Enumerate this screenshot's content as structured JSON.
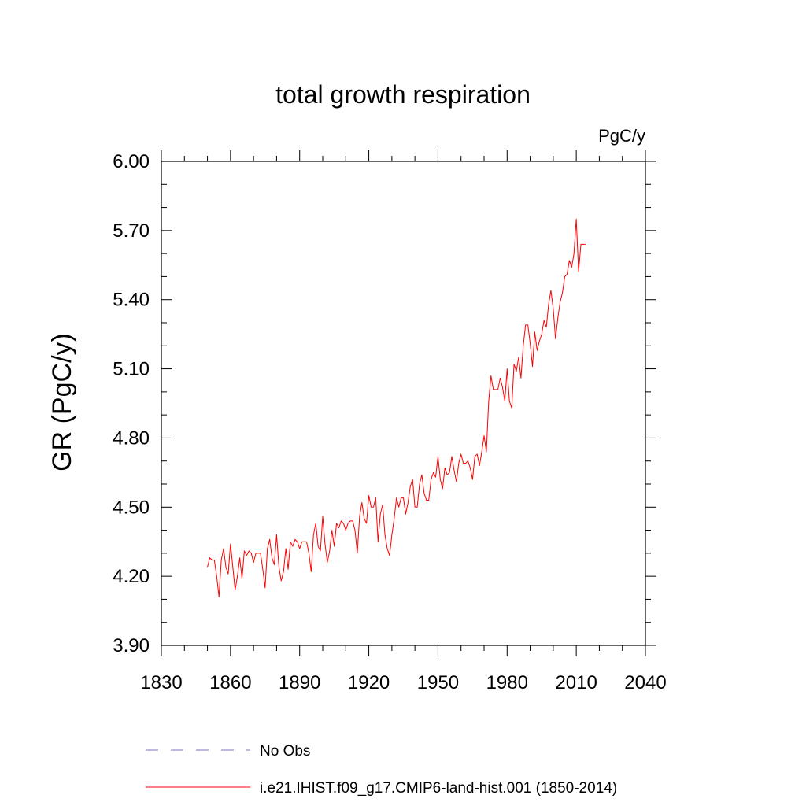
{
  "chart_data": {
    "type": "line",
    "title": "total growth respiration",
    "units": "PgC/y",
    "xlabel": "",
    "ylabel": "GR  (PgC/y)",
    "xlim": [
      1830,
      2040
    ],
    "ylim": [
      3.9,
      6.0
    ],
    "xticks": [
      1830,
      1860,
      1890,
      1920,
      1950,
      1980,
      2010,
      2040
    ],
    "yticks": [
      "3.90",
      "4.20",
      "4.50",
      "4.80",
      "5.10",
      "5.40",
      "5.70",
      "6.00"
    ],
    "grid": false,
    "legend_position": "bottom",
    "series": [
      {
        "name": "No Obs",
        "color": "#9a8fd0",
        "style": "dashed",
        "x": [],
        "values": []
      },
      {
        "name": "i.e21.IHIST.f09_g17.CMIP6-land-hist.001 (1850-2014)",
        "color": "#ff0000",
        "style": "solid",
        "x": [
          1850,
          1851,
          1852,
          1853,
          1854,
          1855,
          1856,
          1857,
          1858,
          1859,
          1860,
          1861,
          1862,
          1863,
          1864,
          1865,
          1866,
          1867,
          1868,
          1869,
          1870,
          1871,
          1872,
          1873,
          1874,
          1875,
          1876,
          1877,
          1878,
          1879,
          1880,
          1881,
          1882,
          1883,
          1884,
          1885,
          1886,
          1887,
          1888,
          1889,
          1890,
          1891,
          1892,
          1893,
          1894,
          1895,
          1896,
          1897,
          1898,
          1899,
          1900,
          1901,
          1902,
          1903,
          1904,
          1905,
          1906,
          1907,
          1908,
          1909,
          1910,
          1911,
          1912,
          1913,
          1914,
          1915,
          1916,
          1917,
          1918,
          1919,
          1920,
          1921,
          1922,
          1923,
          1924,
          1925,
          1926,
          1927,
          1928,
          1929,
          1930,
          1931,
          1932,
          1933,
          1934,
          1935,
          1936,
          1937,
          1938,
          1939,
          1940,
          1941,
          1942,
          1943,
          1944,
          1945,
          1946,
          1947,
          1948,
          1949,
          1950,
          1951,
          1952,
          1953,
          1954,
          1955,
          1956,
          1957,
          1958,
          1959,
          1960,
          1961,
          1962,
          1963,
          1964,
          1965,
          1966,
          1967,
          1968,
          1969,
          1970,
          1971,
          1972,
          1973,
          1974,
          1975,
          1976,
          1977,
          1978,
          1979,
          1980,
          1981,
          1982,
          1983,
          1984,
          1985,
          1986,
          1987,
          1988,
          1989,
          1990,
          1991,
          1992,
          1993,
          1994,
          1995,
          1996,
          1997,
          1998,
          1999,
          2000,
          2001,
          2002,
          2003,
          2004,
          2005,
          2006,
          2007,
          2008,
          2009,
          2010,
          2011,
          2012,
          2013,
          2014
        ],
        "values": [
          4.24,
          4.28,
          4.27,
          4.27,
          4.2,
          4.11,
          4.27,
          4.32,
          4.24,
          4.21,
          4.34,
          4.24,
          4.14,
          4.2,
          4.28,
          4.19,
          4.31,
          4.29,
          4.31,
          4.3,
          4.26,
          4.3,
          4.3,
          4.3,
          4.23,
          4.15,
          4.32,
          4.36,
          4.28,
          4.25,
          4.38,
          4.24,
          4.18,
          4.22,
          4.32,
          4.23,
          4.35,
          4.33,
          4.36,
          4.35,
          4.32,
          4.35,
          4.35,
          4.35,
          4.3,
          4.22,
          4.38,
          4.43,
          4.33,
          4.31,
          4.46,
          4.34,
          4.26,
          4.31,
          4.4,
          4.33,
          4.43,
          4.41,
          4.44,
          4.43,
          4.4,
          4.43,
          4.44,
          4.44,
          4.4,
          4.3,
          4.46,
          4.52,
          4.45,
          4.43,
          4.55,
          4.5,
          4.5,
          4.54,
          4.35,
          4.47,
          4.51,
          4.38,
          4.32,
          4.29,
          4.38,
          4.45,
          4.54,
          4.5,
          4.54,
          4.54,
          4.47,
          4.52,
          4.59,
          4.62,
          4.5,
          4.5,
          4.6,
          4.64,
          4.56,
          4.53,
          4.53,
          4.62,
          4.65,
          4.63,
          4.72,
          4.62,
          4.58,
          4.67,
          4.64,
          4.65,
          4.72,
          4.66,
          4.61,
          4.69,
          4.73,
          4.69,
          4.69,
          4.7,
          4.67,
          4.62,
          4.72,
          4.73,
          4.68,
          4.74,
          4.81,
          4.74,
          4.96,
          5.07,
          5.01,
          5.01,
          5.01,
          5.06,
          5.02,
          4.96,
          5.1,
          4.96,
          4.93,
          5.12,
          5.09,
          5.15,
          5.06,
          5.2,
          5.29,
          5.29,
          5.21,
          5.11,
          5.26,
          5.18,
          5.22,
          5.25,
          5.31,
          5.28,
          5.38,
          5.44,
          5.36,
          5.23,
          5.32,
          5.39,
          5.43,
          5.5,
          5.51,
          5.57,
          5.54,
          5.6,
          5.75,
          5.52,
          5.64,
          5.64,
          5.64
        ]
      }
    ]
  }
}
